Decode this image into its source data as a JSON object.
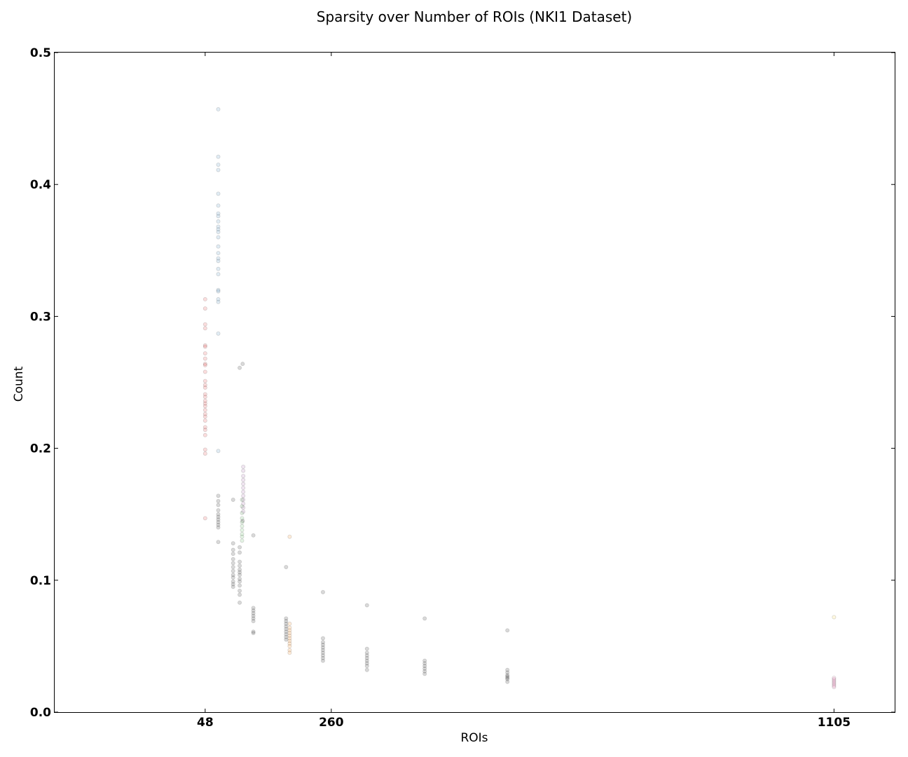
{
  "chart_data": {
    "type": "scatter",
    "title": "Sparsity over Number of ROIs (NKI1 Dataset)",
    "xlabel": "ROIs",
    "ylabel": "Count",
    "xlim": [
      -205,
      1207
    ],
    "ylim": [
      0.0,
      0.5
    ],
    "x_ticks": [
      48,
      260,
      1105
    ],
    "x_tick_labels": [
      "48",
      "260",
      "1105"
    ],
    "y_ticks": [
      0.0,
      0.1,
      0.2,
      0.3,
      0.4,
      0.5
    ],
    "y_tick_labels": [
      "0.0",
      "0.1",
      "0.2",
      "0.3",
      "0.4",
      "0.5"
    ],
    "grid": false,
    "legend": "none",
    "marker_alpha": 0.15,
    "series": [
      {
        "color": "#e41a1c",
        "points": [
          [
            48,
            0.313
          ],
          [
            48,
            0.306
          ],
          [
            48,
            0.294
          ],
          [
            48,
            0.291
          ],
          [
            48,
            0.278
          ],
          [
            48,
            0.277
          ],
          [
            48,
            0.272
          ],
          [
            48,
            0.268
          ],
          [
            48,
            0.264
          ],
          [
            48,
            0.263
          ],
          [
            48,
            0.258
          ],
          [
            48,
            0.251
          ],
          [
            48,
            0.248
          ],
          [
            48,
            0.246
          ],
          [
            48,
            0.241
          ],
          [
            48,
            0.239
          ],
          [
            48,
            0.236
          ],
          [
            48,
            0.234
          ],
          [
            48,
            0.232
          ],
          [
            48,
            0.229
          ],
          [
            48,
            0.226
          ],
          [
            48,
            0.224
          ],
          [
            48,
            0.221
          ],
          [
            48,
            0.216
          ],
          [
            48,
            0.214
          ],
          [
            48,
            0.21
          ],
          [
            48,
            0.199
          ],
          [
            48,
            0.196
          ],
          [
            48,
            0.147
          ]
        ]
      },
      {
        "color": "#377eb8",
        "points": [
          [
            70,
            0.457
          ],
          [
            70,
            0.421
          ],
          [
            70,
            0.415
          ],
          [
            70,
            0.411
          ],
          [
            70,
            0.393
          ],
          [
            70,
            0.384
          ],
          [
            70,
            0.378
          ],
          [
            70,
            0.376
          ],
          [
            70,
            0.372
          ],
          [
            70,
            0.368
          ],
          [
            70,
            0.366
          ],
          [
            70,
            0.364
          ],
          [
            70,
            0.36
          ],
          [
            70,
            0.353
          ],
          [
            70,
            0.348
          ],
          [
            70,
            0.344
          ],
          [
            70,
            0.342
          ],
          [
            70,
            0.336
          ],
          [
            70,
            0.332
          ],
          [
            70,
            0.32
          ],
          [
            70,
            0.319
          ],
          [
            70,
            0.313
          ],
          [
            70,
            0.311
          ],
          [
            70,
            0.287
          ],
          [
            70,
            0.198
          ]
        ]
      },
      {
        "color": "#000000",
        "points": [
          [
            70,
            0.164
          ],
          [
            70,
            0.16
          ],
          [
            70,
            0.157
          ],
          [
            70,
            0.153
          ],
          [
            70,
            0.15
          ],
          [
            70,
            0.148
          ],
          [
            70,
            0.146
          ],
          [
            70,
            0.144
          ],
          [
            70,
            0.142
          ],
          [
            70,
            0.14
          ],
          [
            70,
            0.129
          ],
          [
            95,
            0.161
          ],
          [
            95,
            0.128
          ],
          [
            95,
            0.123
          ],
          [
            95,
            0.12
          ],
          [
            95,
            0.116
          ],
          [
            95,
            0.113
          ],
          [
            95,
            0.11
          ],
          [
            95,
            0.107
          ],
          [
            95,
            0.104
          ],
          [
            95,
            0.102
          ],
          [
            95,
            0.099
          ],
          [
            95,
            0.097
          ],
          [
            95,
            0.095
          ],
          [
            106,
            0.261
          ],
          [
            106,
            0.125
          ],
          [
            106,
            0.121
          ],
          [
            106,
            0.114
          ],
          [
            106,
            0.111
          ],
          [
            106,
            0.108
          ],
          [
            106,
            0.106
          ],
          [
            106,
            0.104
          ],
          [
            106,
            0.101
          ],
          [
            106,
            0.099
          ],
          [
            106,
            0.096
          ],
          [
            106,
            0.092
          ],
          [
            106,
            0.089
          ],
          [
            106,
            0.083
          ],
          [
            111,
            0.264
          ],
          [
            111,
            0.145
          ],
          [
            129,
            0.134
          ],
          [
            129,
            0.079
          ],
          [
            129,
            0.077
          ],
          [
            129,
            0.075
          ],
          [
            129,
            0.073
          ],
          [
            129,
            0.071
          ],
          [
            129,
            0.069
          ],
          [
            129,
            0.061
          ],
          [
            129,
            0.06
          ],
          [
            184,
            0.11
          ],
          [
            184,
            0.071
          ],
          [
            184,
            0.069
          ],
          [
            184,
            0.067
          ],
          [
            184,
            0.065
          ],
          [
            184,
            0.063
          ],
          [
            184,
            0.061
          ],
          [
            184,
            0.059
          ],
          [
            184,
            0.057
          ],
          [
            184,
            0.055
          ],
          [
            246,
            0.091
          ],
          [
            246,
            0.056
          ],
          [
            246,
            0.053
          ],
          [
            246,
            0.051
          ],
          [
            246,
            0.049
          ],
          [
            246,
            0.047
          ],
          [
            246,
            0.045
          ],
          [
            246,
            0.043
          ],
          [
            246,
            0.041
          ],
          [
            246,
            0.039
          ],
          [
            320,
            0.081
          ],
          [
            320,
            0.048
          ],
          [
            320,
            0.045
          ],
          [
            320,
            0.043
          ],
          [
            320,
            0.041
          ],
          [
            320,
            0.039
          ],
          [
            320,
            0.037
          ],
          [
            320,
            0.035
          ],
          [
            320,
            0.032
          ],
          [
            417,
            0.071
          ],
          [
            417,
            0.039
          ],
          [
            417,
            0.037
          ],
          [
            417,
            0.035
          ],
          [
            417,
            0.033
          ],
          [
            417,
            0.031
          ],
          [
            417,
            0.029
          ],
          [
            556,
            0.062
          ],
          [
            556,
            0.032
          ],
          [
            556,
            0.03
          ],
          [
            556,
            0.028
          ],
          [
            556,
            0.027
          ],
          [
            556,
            0.026
          ],
          [
            556,
            0.025
          ],
          [
            556,
            0.023
          ]
        ]
      },
      {
        "color": "#4daf4a",
        "points": [
          [
            110,
            0.161
          ],
          [
            110,
            0.156
          ],
          [
            110,
            0.151
          ],
          [
            110,
            0.147
          ],
          [
            110,
            0.144
          ],
          [
            110,
            0.141
          ],
          [
            110,
            0.138
          ],
          [
            110,
            0.135
          ],
          [
            110,
            0.133
          ],
          [
            110,
            0.13
          ]
        ]
      },
      {
        "color": "#984ea3",
        "points": [
          [
            112,
            0.186
          ],
          [
            112,
            0.183
          ],
          [
            112,
            0.179
          ],
          [
            112,
            0.176
          ],
          [
            112,
            0.173
          ],
          [
            112,
            0.17
          ],
          [
            112,
            0.167
          ],
          [
            112,
            0.164
          ],
          [
            112,
            0.161
          ],
          [
            112,
            0.158
          ],
          [
            112,
            0.155
          ],
          [
            112,
            0.152
          ]
        ]
      },
      {
        "color": "#ff7f00",
        "points": [
          [
            190,
            0.133
          ],
          [
            190,
            0.067
          ],
          [
            190,
            0.064
          ],
          [
            190,
            0.062
          ],
          [
            190,
            0.06
          ],
          [
            190,
            0.058
          ],
          [
            190,
            0.056
          ],
          [
            190,
            0.054
          ],
          [
            190,
            0.052
          ],
          [
            190,
            0.05
          ],
          [
            190,
            0.047
          ],
          [
            190,
            0.045
          ]
        ]
      },
      {
        "color": "#ffd92f",
        "points": [
          [
            1105,
            0.072
          ]
        ]
      },
      {
        "color": "#f781bf",
        "points": [
          [
            1105,
            0.026
          ],
          [
            1105,
            0.025
          ],
          [
            1105,
            0.024
          ],
          [
            1105,
            0.023
          ],
          [
            1105,
            0.022
          ],
          [
            1105,
            0.021
          ],
          [
            1105,
            0.02
          ],
          [
            1105,
            0.019
          ]
        ]
      }
    ]
  }
}
